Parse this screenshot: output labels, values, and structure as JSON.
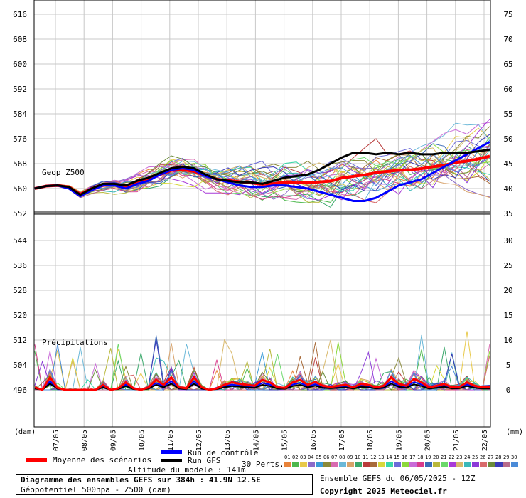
{
  "chart_data": {
    "type": "line",
    "top_panel": {
      "label": "Geop Z500",
      "left_axis": {
        "ticks": [
          616,
          608,
          600,
          592,
          584,
          576,
          568,
          560,
          552
        ],
        "ylim": [
          552,
          620
        ]
      },
      "right_axis": {
        "ticks": [
          75,
          70,
          65,
          60,
          55,
          50,
          45,
          40,
          35
        ]
      },
      "series": [
        {
          "name": "Moyenne des scénarios",
          "color": "#ff0000",
          "values": [
            560.0,
            560.8,
            561.0,
            560.5,
            558.2,
            560.0,
            561.0,
            561.2,
            560.8,
            562.0,
            563.0,
            564.5,
            565.8,
            566.0,
            565.5,
            564.3,
            563.0,
            562.6,
            562.2,
            561.8,
            561.4,
            561.6,
            562.0,
            561.8,
            561.9,
            562.1,
            562.4,
            563.4,
            563.9,
            564.4,
            565.1,
            565.5,
            565.9,
            566.0,
            566.4,
            567.0,
            567.5,
            568.4,
            568.8,
            569.5,
            570.4
          ]
        },
        {
          "name": "Run de contrôle",
          "color": "#0000ff",
          "values": [
            560.0,
            560.8,
            561.0,
            560.0,
            557.5,
            559.5,
            561.0,
            561.0,
            560.0,
            561.5,
            562.5,
            564.5,
            566.0,
            566.5,
            566.0,
            564.0,
            563.0,
            562.0,
            561.0,
            560.5,
            560.5,
            561.0,
            561.0,
            560.5,
            560.0,
            559.0,
            558.0,
            557.0,
            556.0,
            556.0,
            557.0,
            559.0,
            561.0,
            562.0,
            563.0,
            565.0,
            567.0,
            569.0,
            571.0,
            573.0,
            575.0
          ]
        },
        {
          "name": "Run GFS",
          "color": "#000000",
          "values": [
            560.0,
            560.8,
            561.0,
            560.5,
            558.0,
            560.0,
            561.5,
            561.5,
            561.0,
            562.5,
            563.5,
            565.0,
            566.5,
            567.0,
            566.5,
            564.5,
            563.0,
            562.5,
            562.0,
            562.0,
            561.5,
            562.5,
            563.5,
            564.0,
            564.5,
            566.0,
            568.0,
            570.0,
            571.5,
            571.5,
            571.0,
            571.5,
            571.0,
            571.5,
            571.0,
            571.0,
            571.5,
            571.5,
            571.5,
            572.0,
            572.5
          ]
        }
      ]
    },
    "bottom_panel": {
      "label": "Précipitations",
      "left_axis": {
        "ticks": [
          544,
          536,
          528,
          520,
          512,
          504,
          496
        ]
      },
      "right_axis": {
        "ticks": [
          30,
          25,
          20,
          15,
          10,
          5,
          0
        ],
        "unit": "(mm)"
      },
      "mean_series": {
        "name": "Moyenne des scénarios",
        "color": "#ff0000",
        "values": [
          0.5,
          0,
          2.5,
          0.4,
          0,
          0,
          0,
          0,
          0,
          1,
          0,
          0.3,
          1.5,
          0.3,
          0,
          0.5,
          2,
          1,
          2.5,
          0.5,
          0.3,
          2.5,
          0.5,
          0,
          0.3,
          1,
          1.5,
          1.2,
          1,
          0.8,
          2,
          1.5,
          0.5,
          0.4,
          1.5,
          2,
          1,
          1.6,
          0.8,
          0.6,
          0.8,
          1,
          0.5,
          1.2,
          1,
          0.5,
          0.8,
          2.5,
          1.2,
          0.8,
          2.2,
          1.5,
          0.5,
          0.8,
          1.2,
          0.5,
          0.6,
          1.5,
          0.8,
          0.5,
          0.5
        ]
      }
    },
    "x_axis": {
      "unit": "(dam)",
      "categories": [
        "07/05",
        "08/05",
        "09/05",
        "10/05",
        "11/05",
        "12/05",
        "13/05",
        "14/05",
        "15/05",
        "16/05",
        "17/05",
        "18/05",
        "19/05",
        "20/05",
        "21/05",
        "22/05"
      ]
    }
  },
  "legend": {
    "mean_label": "Moyenne des scénarios",
    "control_label": "Run de contrôle",
    "gfs_label": "Run GFS",
    "perts_label": "30 Perts.",
    "perts_numbers": [
      "01",
      "02",
      "03",
      "04",
      "05",
      "06",
      "07",
      "08",
      "09",
      "10",
      "11",
      "12",
      "13",
      "14",
      "15",
      "16",
      "17",
      "18",
      "19",
      "20",
      "21",
      "22",
      "23",
      "24",
      "25",
      "26",
      "27",
      "28",
      "29",
      "30"
    ],
    "perts_colors": [
      "#e8833a",
      "#4db84d",
      "#e8c94a",
      "#8b6bc9",
      "#3a9bd8",
      "#8a8a3a",
      "#d86bb0",
      "#6bb8d8",
      "#d8a36b",
      "#3aa86b",
      "#b83a3a",
      "#a86b3a",
      "#d8d83a",
      "#3ad8a8",
      "#6b6bd8",
      "#8bd83a",
      "#c96bd8",
      "#d83a8b",
      "#3a6bb8",
      "#b8b83a",
      "#6bd86b",
      "#a83ad8",
      "#d8b86b",
      "#3ab8b8",
      "#8b3ad8",
      "#d86b6b",
      "#6b8b3a",
      "#3a3ab8",
      "#b86b8b",
      "#4a8bd8"
    ],
    "model_altitude": "Altitude du modele : 141m"
  },
  "title": {
    "line1": "Diagramme des ensembles GEFS sur 384h : 41.9N 12.5E",
    "line2": "Géopotentiel 500hpa - Z500 (dam)"
  },
  "run_info": "Ensemble GEFS du 06/05/2025 - 12Z",
  "copyright": "Copyright 2025 Meteociel.fr",
  "colors": {
    "mean": "#ff0000",
    "control": "#0000ff",
    "gfs": "#000000",
    "grid": "#c8c8c8"
  }
}
